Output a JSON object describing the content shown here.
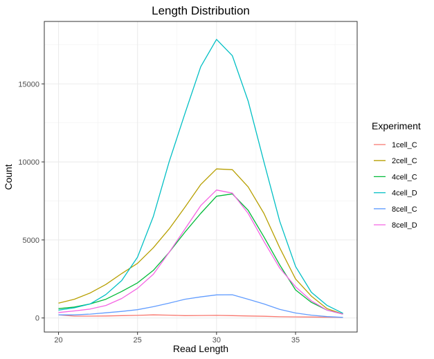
{
  "chart_data": {
    "type": "line",
    "title": "Length Distribution",
    "xlabel": "Read Length",
    "ylabel": "Count",
    "xlim": [
      19.1,
      38.9
    ],
    "ylim": [
      -900,
      19000
    ],
    "x_ticks": [
      20,
      25,
      30,
      35
    ],
    "y_ticks": [
      0,
      5000,
      10000,
      15000
    ],
    "grid": true,
    "legend_title": "Experiment",
    "legend_position": "right",
    "x": [
      20,
      21,
      22,
      23,
      24,
      25,
      26,
      27,
      28,
      29,
      30,
      31,
      32,
      33,
      34,
      35,
      36,
      37,
      38
    ],
    "series": [
      {
        "name": "1cell_C",
        "color": "#F8766D",
        "values": [
          200,
          120,
          120,
          130,
          150,
          170,
          200,
          180,
          150,
          160,
          170,
          150,
          130,
          110,
          80,
          70,
          60,
          50,
          40
        ]
      },
      {
        "name": "2cell_C",
        "color": "#B79F00",
        "values": [
          950,
          1200,
          1600,
          2150,
          2850,
          3500,
          4500,
          5700,
          7100,
          8550,
          9550,
          9500,
          8400,
          6700,
          4500,
          2500,
          1400,
          600,
          250
        ]
      },
      {
        "name": "4cell_C",
        "color": "#00BA38",
        "values": [
          600,
          700,
          900,
          1200,
          1700,
          2250,
          3050,
          4200,
          5500,
          6700,
          7800,
          7950,
          6900,
          5200,
          3400,
          1800,
          1000,
          500,
          250
        ]
      },
      {
        "name": "4cell_D",
        "color": "#00BFC4",
        "values": [
          500,
          650,
          900,
          1500,
          2400,
          3900,
          6500,
          10000,
          13100,
          16100,
          17850,
          16800,
          13900,
          10000,
          6200,
          3300,
          1650,
          800,
          300
        ]
      },
      {
        "name": "8cell_C",
        "color": "#619CFF",
        "values": [
          200,
          200,
          250,
          330,
          420,
          530,
          720,
          950,
          1200,
          1350,
          1480,
          1490,
          1200,
          900,
          550,
          320,
          180,
          90,
          40
        ]
      },
      {
        "name": "8cell_D",
        "color": "#F564E3",
        "values": [
          350,
          450,
          570,
          800,
          1250,
          1900,
          2800,
          4200,
          5700,
          7200,
          8200,
          8000,
          6700,
          4900,
          3200,
          2000,
          1100,
          500,
          250
        ]
      }
    ]
  }
}
